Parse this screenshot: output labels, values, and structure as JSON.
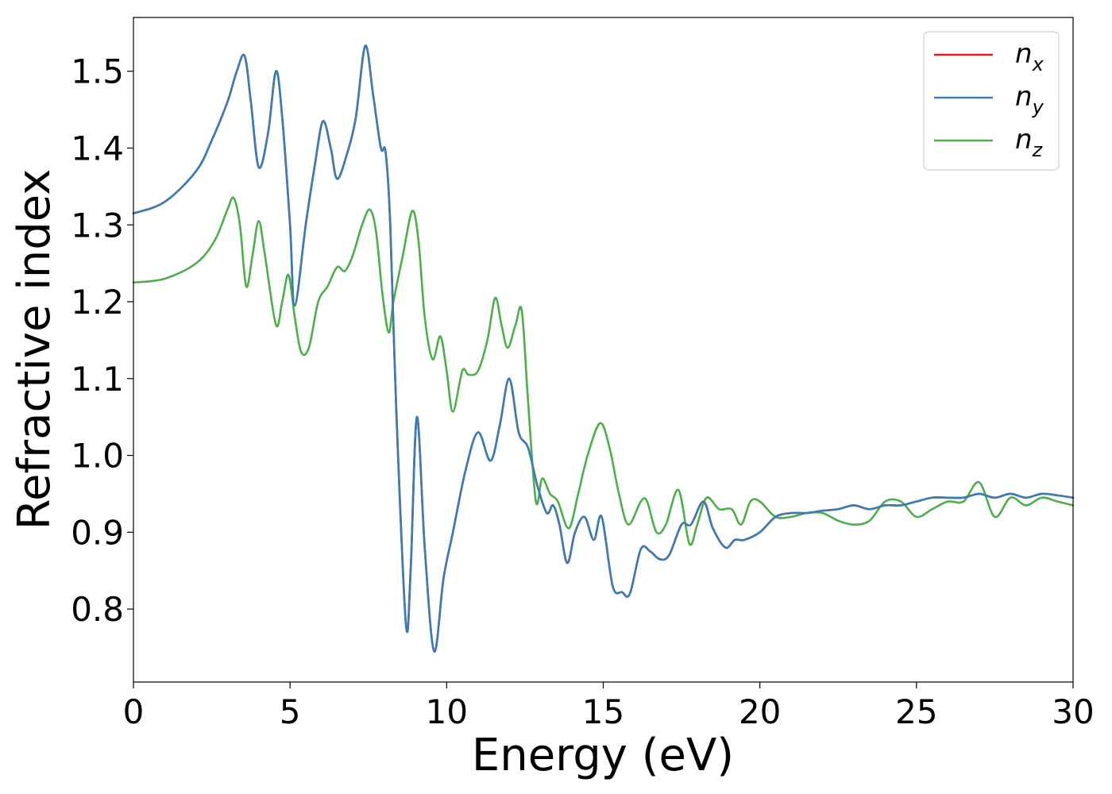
{
  "chart_data": {
    "type": "line",
    "xlabel": "Energy (eV)",
    "ylabel": "Refractive index",
    "xlim": [
      0,
      30
    ],
    "ylim": [
      0.705,
      1.57
    ],
    "xticks": [
      "0",
      "5",
      "10",
      "15",
      "20",
      "25",
      "30"
    ],
    "yticks": [
      "0.8",
      "0.9",
      "1.0",
      "1.1",
      "1.2",
      "1.3",
      "1.4",
      "1.5"
    ],
    "grid": false,
    "legend_position": "top-right",
    "series": [
      {
        "name": "n_x",
        "label_base": "n",
        "label_sub": "x",
        "color": "#e41a1c",
        "x": [
          0,
          1,
          2,
          2.5,
          3,
          3.3,
          3.55,
          3.75,
          4.0,
          4.3,
          4.55,
          4.75,
          5.0,
          5.15,
          5.5,
          5.8,
          6.05,
          6.3,
          6.5,
          6.8,
          7.1,
          7.4,
          7.65,
          7.9,
          8.05,
          8.2,
          8.4,
          8.7,
          8.85,
          9.05,
          9.3,
          9.6,
          9.9,
          10.2,
          10.6,
          11.0,
          11.4,
          11.7,
          12.0,
          12.3,
          12.6,
          12.9,
          13.2,
          13.4,
          13.6,
          13.85,
          14.1,
          14.4,
          14.7,
          14.95,
          15.3,
          15.6,
          15.85,
          16.2,
          16.5,
          16.8,
          17.1,
          17.5,
          17.8,
          18.2,
          18.5,
          18.9,
          19.2,
          19.5,
          20.0,
          20.5,
          21.0,
          21.5,
          22.0,
          22.5,
          23.0,
          23.5,
          24.0,
          24.5,
          25.0,
          25.5,
          26.0,
          26.5,
          27.0,
          27.5,
          28.0,
          28.5,
          29.0,
          29.5,
          30.0
        ],
        "values": [
          1.315,
          1.33,
          1.37,
          1.41,
          1.46,
          1.5,
          1.52,
          1.46,
          1.375,
          1.42,
          1.5,
          1.44,
          1.3,
          1.195,
          1.3,
          1.38,
          1.435,
          1.4,
          1.36,
          1.39,
          1.44,
          1.533,
          1.47,
          1.4,
          1.395,
          1.3,
          1.05,
          0.78,
          0.85,
          1.05,
          0.88,
          0.745,
          0.84,
          0.9,
          0.98,
          1.03,
          0.993,
          1.04,
          1.1,
          1.03,
          1.01,
          0.96,
          0.925,
          0.935,
          0.91,
          0.86,
          0.9,
          0.92,
          0.89,
          0.92,
          0.83,
          0.822,
          0.82,
          0.878,
          0.875,
          0.865,
          0.87,
          0.91,
          0.91,
          0.94,
          0.905,
          0.88,
          0.89,
          0.89,
          0.9,
          0.92,
          0.925,
          0.925,
          0.928,
          0.93,
          0.935,
          0.93,
          0.935,
          0.935,
          0.94,
          0.945,
          0.945,
          0.945,
          0.95,
          0.945,
          0.95,
          0.945,
          0.95,
          0.948,
          0.945
        ]
      },
      {
        "name": "n_y",
        "label_base": "n",
        "label_sub": "y",
        "color": "#377eb8",
        "x": [
          0,
          1,
          2,
          2.5,
          3,
          3.3,
          3.55,
          3.75,
          4.0,
          4.3,
          4.55,
          4.75,
          5.0,
          5.15,
          5.5,
          5.8,
          6.05,
          6.3,
          6.5,
          6.8,
          7.1,
          7.4,
          7.65,
          7.9,
          8.05,
          8.2,
          8.4,
          8.7,
          8.85,
          9.05,
          9.3,
          9.6,
          9.9,
          10.2,
          10.6,
          11.0,
          11.4,
          11.7,
          12.0,
          12.3,
          12.6,
          12.9,
          13.2,
          13.4,
          13.6,
          13.85,
          14.1,
          14.4,
          14.7,
          14.95,
          15.3,
          15.6,
          15.85,
          16.2,
          16.5,
          16.8,
          17.1,
          17.5,
          17.8,
          18.2,
          18.5,
          18.9,
          19.2,
          19.5,
          20.0,
          20.5,
          21.0,
          21.5,
          22.0,
          22.5,
          23.0,
          23.5,
          24.0,
          24.5,
          25.0,
          25.5,
          26.0,
          26.5,
          27.0,
          27.5,
          28.0,
          28.5,
          29.0,
          29.5,
          30.0
        ],
        "values": [
          1.315,
          1.33,
          1.37,
          1.41,
          1.46,
          1.5,
          1.52,
          1.46,
          1.375,
          1.42,
          1.5,
          1.44,
          1.3,
          1.195,
          1.3,
          1.38,
          1.435,
          1.4,
          1.36,
          1.39,
          1.44,
          1.533,
          1.47,
          1.4,
          1.395,
          1.3,
          1.05,
          0.78,
          0.85,
          1.05,
          0.88,
          0.745,
          0.84,
          0.9,
          0.98,
          1.03,
          0.993,
          1.04,
          1.1,
          1.03,
          1.01,
          0.96,
          0.925,
          0.935,
          0.91,
          0.86,
          0.9,
          0.92,
          0.89,
          0.92,
          0.83,
          0.822,
          0.82,
          0.878,
          0.875,
          0.865,
          0.87,
          0.91,
          0.91,
          0.94,
          0.905,
          0.88,
          0.89,
          0.89,
          0.9,
          0.92,
          0.925,
          0.925,
          0.928,
          0.93,
          0.935,
          0.93,
          0.935,
          0.935,
          0.94,
          0.945,
          0.945,
          0.945,
          0.95,
          0.945,
          0.95,
          0.945,
          0.95,
          0.948,
          0.945
        ]
      },
      {
        "name": "n_z",
        "label_base": "n",
        "label_sub": "z",
        "color": "#4daf4a",
        "x": [
          0,
          1,
          2,
          2.6,
          3.0,
          3.2,
          3.4,
          3.6,
          3.8,
          4.0,
          4.2,
          4.55,
          4.75,
          4.95,
          5.15,
          5.35,
          5.6,
          5.9,
          6.2,
          6.5,
          6.75,
          7.0,
          7.3,
          7.55,
          7.75,
          7.95,
          8.15,
          8.3,
          8.6,
          8.9,
          9.1,
          9.3,
          9.55,
          9.8,
          10.0,
          10.2,
          10.5,
          10.7,
          11.0,
          11.3,
          11.55,
          11.75,
          11.95,
          12.2,
          12.4,
          12.6,
          12.85,
          13.05,
          13.3,
          13.55,
          13.9,
          14.2,
          14.5,
          14.9,
          15.2,
          15.5,
          15.8,
          16.2,
          16.4,
          16.7,
          17.0,
          17.4,
          17.75,
          18.0,
          18.3,
          18.7,
          19.1,
          19.4,
          19.7,
          20.0,
          20.5,
          21.0,
          21.5,
          22.0,
          22.5,
          23.0,
          23.5,
          24.0,
          24.5,
          25.0,
          25.5,
          26.0,
          26.5,
          27.0,
          27.5,
          28.0,
          28.5,
          29.0,
          29.5,
          30.0
        ],
        "values": [
          1.225,
          1.23,
          1.25,
          1.28,
          1.32,
          1.335,
          1.3,
          1.22,
          1.26,
          1.305,
          1.26,
          1.17,
          1.2,
          1.235,
          1.18,
          1.135,
          1.14,
          1.2,
          1.22,
          1.245,
          1.24,
          1.26,
          1.3,
          1.32,
          1.29,
          1.21,
          1.16,
          1.2,
          1.26,
          1.318,
          1.28,
          1.18,
          1.125,
          1.155,
          1.11,
          1.057,
          1.11,
          1.105,
          1.11,
          1.15,
          1.205,
          1.17,
          1.14,
          1.17,
          1.188,
          1.07,
          0.94,
          0.97,
          0.95,
          0.94,
          0.905,
          0.95,
          1.0,
          1.042,
          1.01,
          0.95,
          0.91,
          0.94,
          0.94,
          0.9,
          0.91,
          0.955,
          0.885,
          0.91,
          0.945,
          0.93,
          0.93,
          0.91,
          0.94,
          0.94,
          0.92,
          0.92,
          0.925,
          0.925,
          0.915,
          0.91,
          0.915,
          0.94,
          0.94,
          0.92,
          0.93,
          0.94,
          0.94,
          0.965,
          0.92,
          0.945,
          0.935,
          0.945,
          0.94,
          0.935
        ]
      }
    ]
  }
}
